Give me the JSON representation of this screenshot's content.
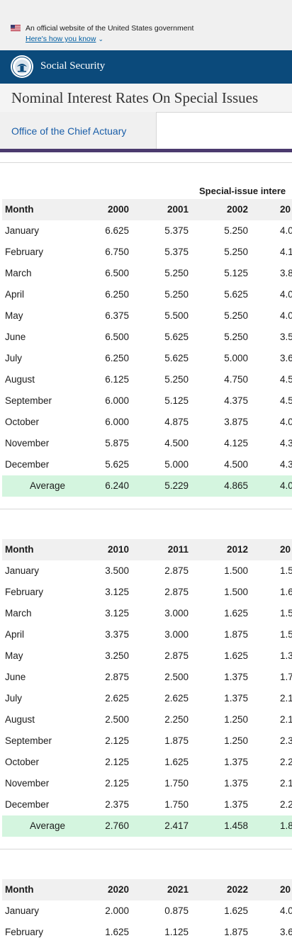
{
  "gov_banner": {
    "text": "An official website of the United States government",
    "link": "Here's how you know"
  },
  "header": {
    "brand": "Social Security"
  },
  "page": {
    "title": "Nominal Interest Rates On Special Issues",
    "office_link": "Office of the Chief Actuary",
    "table_caption": "Special-issue intere"
  },
  "tables": [
    {
      "headers": [
        "Month",
        "2000",
        "2001",
        "2002",
        "20"
      ],
      "rows": [
        [
          "January",
          "6.625",
          "5.375",
          "5.250",
          "4.0"
        ],
        [
          "February",
          "6.750",
          "5.375",
          "5.250",
          "4.1"
        ],
        [
          "March",
          "6.500",
          "5.250",
          "5.125",
          "3.8"
        ],
        [
          "April",
          "6.250",
          "5.250",
          "5.625",
          "4.0"
        ],
        [
          "May",
          "6.375",
          "5.500",
          "5.250",
          "4.0"
        ],
        [
          "June",
          "6.500",
          "5.625",
          "5.250",
          "3.5"
        ],
        [
          "July",
          "6.250",
          "5.625",
          "5.000",
          "3.6"
        ],
        [
          "August",
          "6.125",
          "5.250",
          "4.750",
          "4.5"
        ],
        [
          "September",
          "6.000",
          "5.125",
          "4.375",
          "4.5"
        ],
        [
          "October",
          "6.000",
          "4.875",
          "3.875",
          "4.0"
        ],
        [
          "November",
          "5.875",
          "4.500",
          "4.125",
          "4.3"
        ],
        [
          "December",
          "5.625",
          "5.000",
          "4.500",
          "4.3"
        ]
      ],
      "average": [
        "Average",
        "6.240",
        "5.229",
        "4.865",
        "4.0"
      ]
    },
    {
      "headers": [
        "Month",
        "2010",
        "2011",
        "2012",
        "20"
      ],
      "rows": [
        [
          "January",
          "3.500",
          "2.875",
          "1.500",
          "1.5"
        ],
        [
          "February",
          "3.125",
          "2.875",
          "1.500",
          "1.6"
        ],
        [
          "March",
          "3.125",
          "3.000",
          "1.625",
          "1.5"
        ],
        [
          "April",
          "3.375",
          "3.000",
          "1.875",
          "1.5"
        ],
        [
          "May",
          "3.250",
          "2.875",
          "1.625",
          "1.3"
        ],
        [
          "June",
          "2.875",
          "2.500",
          "1.375",
          "1.7"
        ],
        [
          "July",
          "2.625",
          "2.625",
          "1.375",
          "2.1"
        ],
        [
          "August",
          "2.500",
          "2.250",
          "1.250",
          "2.1"
        ],
        [
          "September",
          "2.125",
          "1.875",
          "1.250",
          "2.3"
        ],
        [
          "October",
          "2.125",
          "1.625",
          "1.375",
          "2.2"
        ],
        [
          "November",
          "2.125",
          "1.750",
          "1.375",
          "2.1"
        ],
        [
          "December",
          "2.375",
          "1.750",
          "1.375",
          "2.2"
        ]
      ],
      "average": [
        "Average",
        "2.760",
        "2.417",
        "1.458",
        "1.8"
      ]
    },
    {
      "headers": [
        "Month",
        "2020",
        "2021",
        "2022",
        "20"
      ],
      "rows": [
        [
          "January",
          "2.000",
          "0.875",
          "1.625",
          "4.0"
        ],
        [
          "February",
          "1.625",
          "1.125",
          "1.875",
          "3.6"
        ]
      ]
    }
  ]
}
